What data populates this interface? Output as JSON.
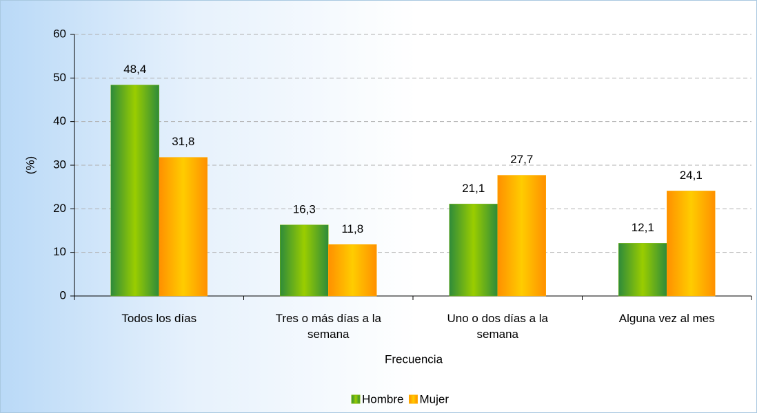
{
  "chart_data": {
    "type": "bar",
    "categories": [
      "Todos los días",
      "Tres o más días a la semana",
      "Uno o dos días a la semana",
      "Alguna vez al mes"
    ],
    "series": [
      {
        "name": "Hombre",
        "color": "#7ab800",
        "values": [
          48.4,
          16.3,
          21.1,
          12.1
        ],
        "value_labels": [
          "48,4",
          "16,3",
          "21,1",
          "12,1"
        ]
      },
      {
        "name": "Mujer",
        "color": "#ffb000",
        "values": [
          31.8,
          11.8,
          27.7,
          24.1
        ],
        "value_labels": [
          "31,8",
          "11,8",
          "27,7",
          "24,1"
        ]
      }
    ],
    "ylabel": "(%)",
    "xlabel": "Frecuencia",
    "ylim": [
      0,
      60
    ],
    "yticks": [
      0,
      10,
      20,
      30,
      40,
      50,
      60
    ],
    "grid": true,
    "legend": "bottom"
  }
}
